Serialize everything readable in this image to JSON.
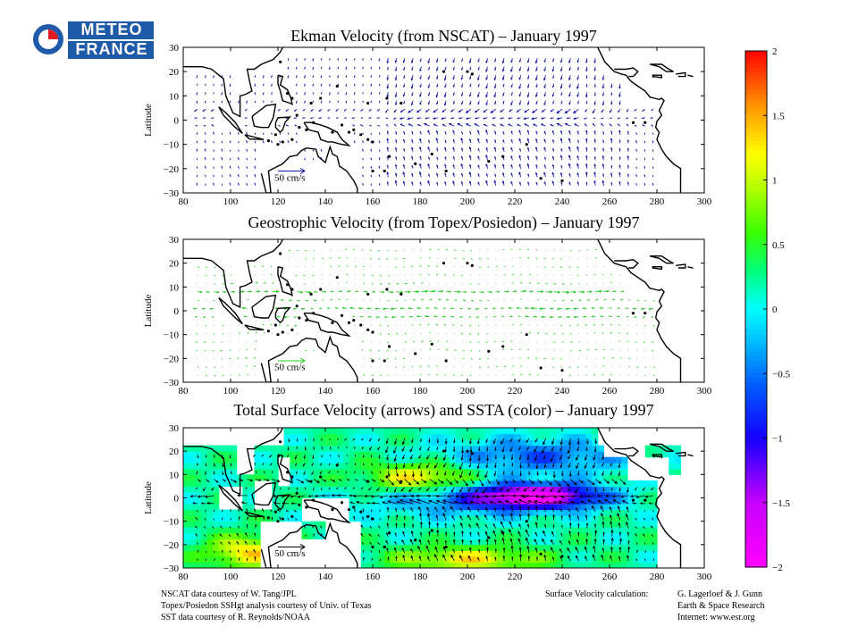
{
  "logo": {
    "line1": "METEO",
    "line2": "FRANCE",
    "color": "#1e5aa8"
  },
  "chart_data": [
    {
      "type": "vector-field",
      "title": "Ekman Velocity (from NSCAT) – January 1997",
      "ylabel": "Latitude",
      "xlabel": "",
      "xlim": [
        80,
        300
      ],
      "ylim": [
        -30,
        30
      ],
      "xticks": [
        80,
        100,
        120,
        140,
        160,
        180,
        200,
        220,
        240,
        260,
        280,
        300
      ],
      "yticks": [
        30,
        20,
        10,
        0,
        -10,
        -20,
        -30
      ],
      "arrow_color": "#1a1aa8",
      "reference_arrow": "50 cm/s",
      "field": "ekman"
    },
    {
      "type": "vector-field",
      "title": "Geostrophic Velocity (from Topex/Posiedon) – January 1997",
      "ylabel": "Latitude",
      "xlabel": "",
      "xlim": [
        80,
        300
      ],
      "ylim": [
        -30,
        30
      ],
      "xticks": [
        80,
        100,
        120,
        140,
        160,
        180,
        200,
        220,
        240,
        260,
        280,
        300
      ],
      "yticks": [
        30,
        20,
        10,
        0,
        -10,
        -20,
        -30
      ],
      "arrow_color": "#22cc22",
      "reference_arrow": "50 cm/s",
      "field": "geostrophic"
    },
    {
      "type": "heatmap",
      "title": "Total Surface Velocity (arrows) and SSTA (color) – January 1997",
      "ylabel": "Latitude",
      "xlabel": "",
      "xlim": [
        80,
        300
      ],
      "ylim": [
        -30,
        30
      ],
      "xticks": [
        80,
        100,
        120,
        140,
        160,
        180,
        200,
        220,
        240,
        260,
        280,
        300
      ],
      "yticks": [
        30,
        20,
        10,
        0,
        -10,
        -20,
        -30
      ],
      "arrow_color": "#000000",
      "reference_arrow": "50 cm/s",
      "field": "total",
      "colorbar": {
        "range": [
          -2,
          2
        ],
        "ticks": [
          "2",
          "1.5",
          "1",
          "0.5",
          "0",
          "−0.5",
          "−1",
          "−1.5",
          "−2"
        ],
        "colors": [
          "#ff00ff",
          "#c800ff",
          "#0000ff",
          "#00a0ff",
          "#00ffff",
          "#00ff60",
          "#60ff00",
          "#ffff00",
          "#ff8000",
          "#ff0000"
        ]
      }
    }
  ],
  "credits": {
    "left": [
      "NSCAT data courtesy of W. Tang/JPL",
      "Topex/Posiedon SSHgt analysis courtesy of Univ. of Texas",
      "SST data courtesy of R. Reynolds/NOAA"
    ],
    "middle": "Surface Velocity calculation:",
    "right": [
      "G. Lagerloef & J. Gunn",
      "Earth & Space Research",
      "Internet: www.esr.org"
    ]
  }
}
